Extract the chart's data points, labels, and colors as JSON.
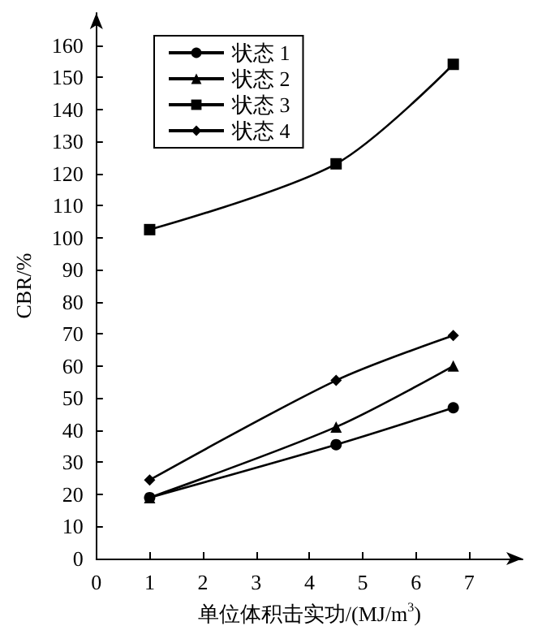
{
  "chart_data": {
    "type": "line",
    "xlabel": "单位体积击实功/(MJ/m$^{3}$)",
    "ylabel": "CBR/%",
    "xlim": [
      0,
      8
    ],
    "xticks": [
      0,
      1,
      2,
      3,
      4,
      5,
      6,
      7
    ],
    "ylim": [
      0,
      170
    ],
    "yticks": [
      0,
      10,
      20,
      30,
      40,
      50,
      60,
      70,
      80,
      90,
      100,
      110,
      120,
      130,
      140,
      150,
      160
    ],
    "legend": "top left",
    "grid": false,
    "series": [
      {
        "name": "状态 1",
        "color": "#000000",
        "marker": "circle",
        "x": [
          1,
          4.5,
          6.7
        ],
        "values": [
          19,
          35.5,
          47
        ]
      },
      {
        "name": "状态 2",
        "color": "#000000",
        "marker": "triangle",
        "x": [
          1,
          4.5,
          6.7
        ],
        "values": [
          19,
          41,
          60
        ]
      },
      {
        "name": "状态 3",
        "color": "#000000",
        "marker": "square",
        "x": [
          1,
          4.5,
          6.7
        ],
        "values": [
          102.5,
          123,
          154
        ]
      },
      {
        "name": "状态 4",
        "color": "#000000",
        "marker": "diamond",
        "x": [
          1,
          4.5,
          6.7
        ],
        "values": [
          24.5,
          55.5,
          69.5
        ]
      }
    ]
  }
}
